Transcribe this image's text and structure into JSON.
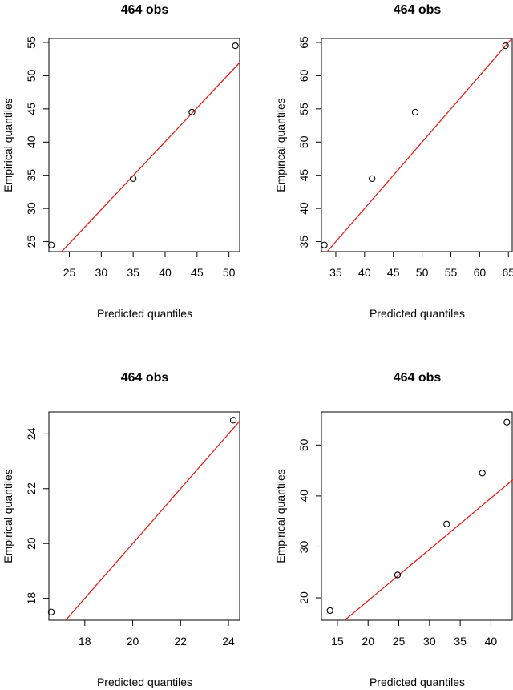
{
  "chart_data": [
    {
      "type": "scatter",
      "title": "464 obs",
      "xlabel": "Predicted  quantiles",
      "ylabel": "Empirical  quantiles",
      "xlim": [
        21.8,
        51.8
      ],
      "ylim": [
        23.5,
        55.6
      ],
      "xticks": [
        25,
        30,
        35,
        40,
        45,
        50
      ],
      "yticks": [
        25,
        30,
        35,
        40,
        45,
        50,
        55
      ],
      "points": [
        [
          22.2,
          24.5
        ],
        [
          35.0,
          34.5
        ],
        [
          44.2,
          44.5
        ],
        [
          51.0,
          54.5
        ]
      ],
      "reference_line": [
        [
          23.8,
          23.5
        ],
        [
          51.8,
          52.1
        ]
      ],
      "colors": {
        "points": "#000000",
        "reference_line": "#e8201c"
      }
    },
    {
      "type": "scatter",
      "title": "464 obs",
      "xlabel": "Predicted  quantiles",
      "ylabel": "Empirical  quantiles",
      "xlim": [
        32.5,
        65.8
      ],
      "ylim": [
        33.5,
        65.6
      ],
      "xticks": [
        35,
        40,
        45,
        50,
        55,
        60,
        65
      ],
      "yticks": [
        35,
        40,
        45,
        50,
        55,
        60,
        65
      ],
      "points": [
        [
          33.0,
          34.5
        ],
        [
          41.3,
          44.5
        ],
        [
          48.8,
          54.5
        ],
        [
          64.5,
          64.5
        ]
      ],
      "reference_line": [
        [
          33.5,
          33.5
        ],
        [
          65.6,
          65.6
        ]
      ],
      "colors": {
        "points": "#000000",
        "reference_line": "#e8201c"
      }
    },
    {
      "type": "scatter",
      "title": "464 obs",
      "xlabel": "Predicted  quantiles",
      "ylabel": "Empirical  quantiles",
      "xlim": [
        16.5,
        24.5
      ],
      "ylim": [
        17.2,
        24.8
      ],
      "xticks": [
        18,
        20,
        22,
        24
      ],
      "yticks": [
        18,
        20,
        22,
        24
      ],
      "points": [
        [
          16.6,
          17.5
        ],
        [
          24.2,
          24.5
        ]
      ],
      "reference_line": [
        [
          17.2,
          17.2
        ],
        [
          24.5,
          24.5
        ]
      ],
      "colors": {
        "points": "#000000",
        "reference_line": "#e8201c"
      }
    },
    {
      "type": "scatter",
      "title": "464 obs",
      "xlabel": "Predicted  quantiles",
      "ylabel": "Empirical  quantiles",
      "xlim": [
        12.4,
        43.6
      ],
      "ylim": [
        15.6,
        56.5
      ],
      "xticks": [
        15,
        20,
        25,
        30,
        35,
        40
      ],
      "yticks": [
        20,
        30,
        40,
        50
      ],
      "points": [
        [
          13.8,
          17.5
        ],
        [
          24.8,
          24.5
        ],
        [
          32.8,
          34.5
        ],
        [
          38.6,
          44.5
        ],
        [
          42.6,
          54.5
        ]
      ],
      "reference_line": [
        [
          16.2,
          15.6
        ],
        [
          43.6,
          43.2
        ]
      ],
      "colors": {
        "points": "#000000",
        "reference_line": "#e8201c"
      }
    }
  ]
}
